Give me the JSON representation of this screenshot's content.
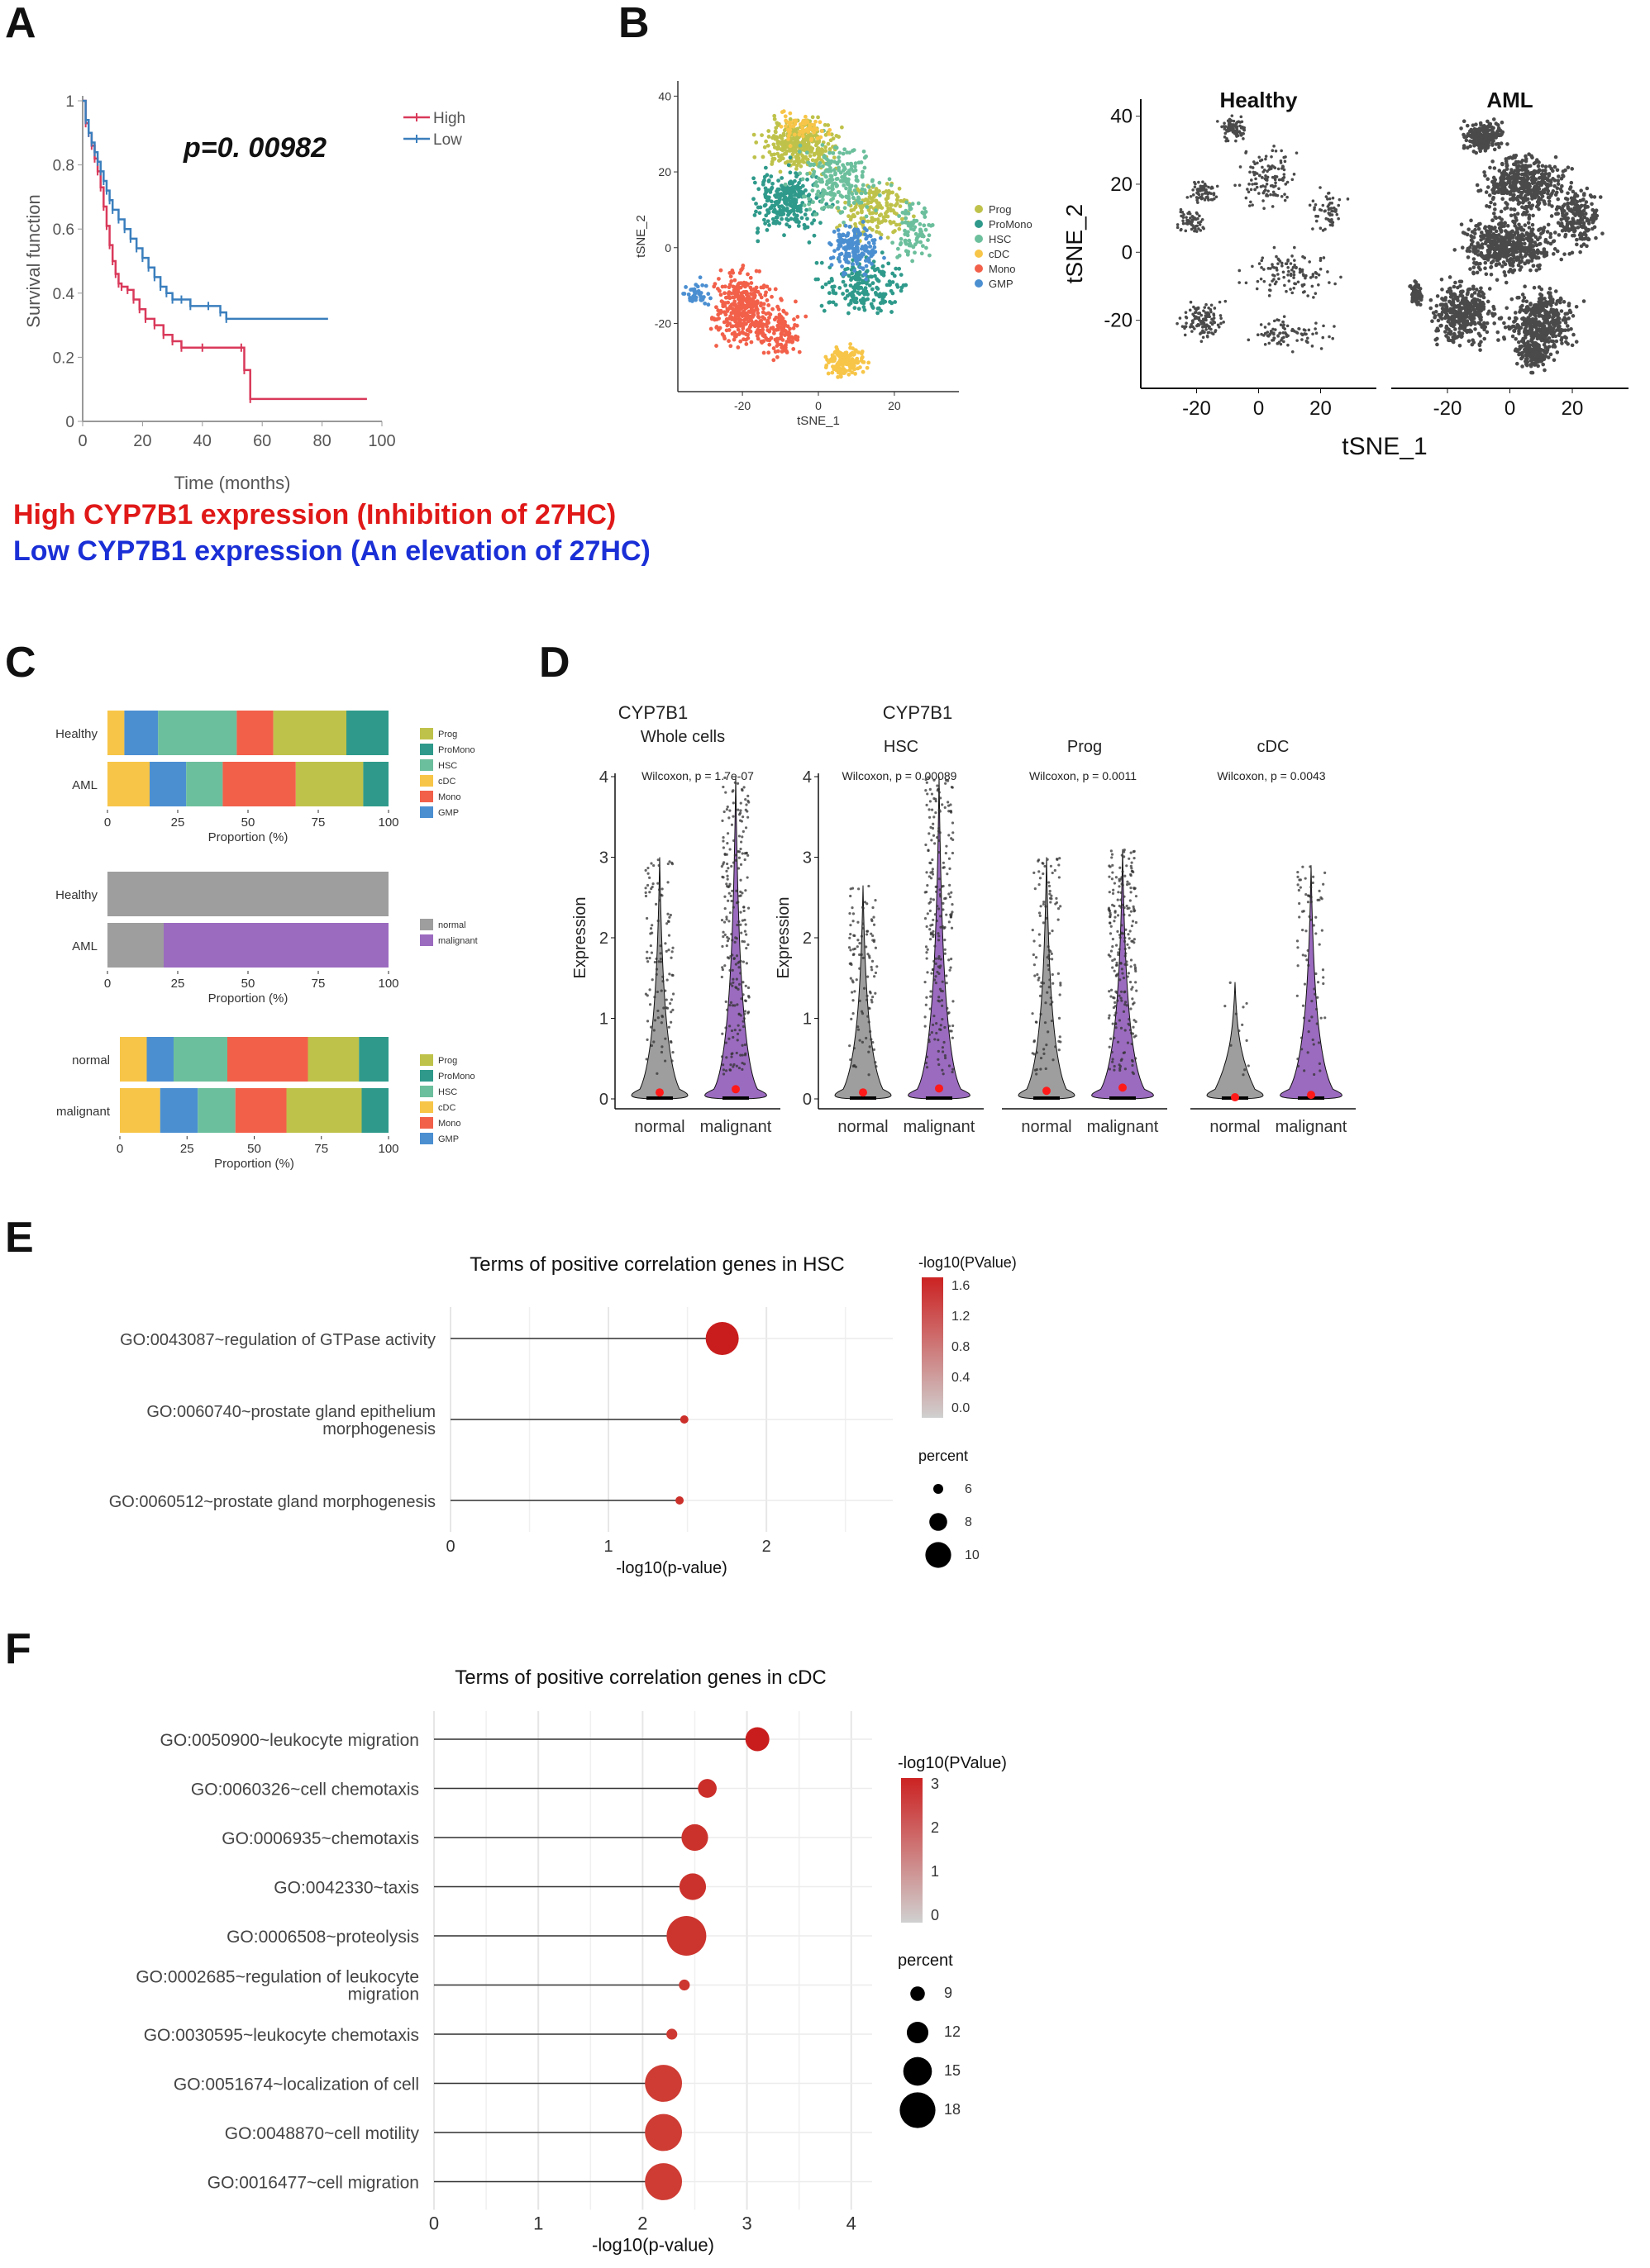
{
  "panels": {
    "A": "A",
    "B": "B",
    "C": "C",
    "D": "D",
    "E": "E",
    "F": "F"
  },
  "colors": {
    "high": "#d9395a",
    "low": "#3a7ebd",
    "Prog": "#bfc24a",
    "ProMono": "#2f9a8b",
    "HSC": "#6cbf9c",
    "cDC": "#f7c548",
    "Mono": "#f2604a",
    "GMP": "#4b8fd1",
    "normal": "#9e9e9e",
    "malignant": "#9b6bbf",
    "tsne_dots": "#4a4a4a",
    "red_dot": "#ff1a1a",
    "pval_low": "#d0d0d0",
    "pval_high": "#cc2222"
  },
  "panelA": {
    "pvalue_text": "p=0. 00982",
    "xlabel": "Time (months)",
    "ylabel": "Survival function",
    "legend": [
      "High",
      "Low"
    ],
    "caption_high": "High CYP7B1 expression (Inhibition of 27HC)",
    "caption_low": "Low CYP7B1 expression (An elevation of 27HC)",
    "chart_data": {
      "type": "line",
      "xlabel": "Time (months)",
      "ylabel": "Survival function",
      "xlim": [
        0,
        100
      ],
      "ylim": [
        0,
        1
      ],
      "x_ticks": [
        "0",
        "20",
        "40",
        "60",
        "80",
        "100"
      ],
      "y_ticks": [
        "0",
        "0.2",
        "0.4",
        "0.6",
        "0.8",
        "1"
      ],
      "series": [
        {
          "name": "High",
          "x": [
            0,
            1,
            2,
            3,
            4,
            5,
            6,
            7,
            8,
            9,
            10,
            11,
            12,
            13,
            15,
            17,
            19,
            21,
            24,
            27,
            30,
            33,
            40,
            53,
            54,
            56,
            95
          ],
          "y": [
            1,
            0.93,
            0.9,
            0.86,
            0.82,
            0.78,
            0.73,
            0.67,
            0.61,
            0.55,
            0.5,
            0.46,
            0.43,
            0.42,
            0.41,
            0.38,
            0.35,
            0.32,
            0.3,
            0.27,
            0.25,
            0.23,
            0.23,
            0.23,
            0.16,
            0.07,
            0.07
          ]
        },
        {
          "name": "Low",
          "x": [
            0,
            1,
            2,
            3,
            4,
            5,
            6,
            7,
            8,
            9,
            10,
            12,
            14,
            16,
            18,
            20,
            22,
            24,
            26,
            28,
            30,
            33,
            36,
            42,
            46,
            48,
            82
          ],
          "y": [
            1,
            0.94,
            0.9,
            0.87,
            0.84,
            0.81,
            0.78,
            0.75,
            0.72,
            0.69,
            0.66,
            0.63,
            0.6,
            0.57,
            0.54,
            0.51,
            0.48,
            0.45,
            0.42,
            0.4,
            0.38,
            0.38,
            0.36,
            0.36,
            0.34,
            0.32,
            0.32
          ]
        }
      ]
    }
  },
  "panelB": {
    "left_xlabel": "tSNE_1",
    "left_ylabel": "tSNE_2",
    "left_ticks_x": [
      "-20",
      "0",
      "20"
    ],
    "left_ticks_y": [
      "-20",
      "0",
      "20",
      "40"
    ],
    "legend": [
      "Prog",
      "ProMono",
      "HSC",
      "cDC",
      "Mono",
      "GMP"
    ],
    "right_titles": [
      "Healthy",
      "AML"
    ],
    "right_xlabel": "tSNE_1",
    "right_ylabel": "tSNE_2",
    "right_ticks_x": [
      "-20",
      "0",
      "20"
    ],
    "right_ticks_y": [
      "-20",
      "0",
      "20",
      "40"
    ]
  },
  "panelC": {
    "chart_data": [
      {
        "type": "bar",
        "stacked": true,
        "orientation": "horizontal",
        "xlabel": "Proportion (%)",
        "categories": [
          "Healthy",
          "AML"
        ],
        "series": [
          {
            "name": "Prog",
            "values": [
              0,
              0
            ]
          },
          {
            "name": "cDC",
            "values": [
              6,
              15
            ]
          },
          {
            "name": "GMP",
            "values": [
              12,
              13
            ]
          },
          {
            "name": "HSC",
            "values": [
              28,
              13
            ]
          },
          {
            "name": "Mono",
            "values": [
              13,
              26
            ]
          },
          {
            "name": "Prog",
            "values": [
              26,
              24
            ]
          },
          {
            "name": "ProMono",
            "values": [
              15,
              9
            ]
          }
        ],
        "legend": [
          "Prog",
          "ProMono",
          "HSC",
          "cDC",
          "Mono",
          "GMP"
        ],
        "x_ticks": [
          "0",
          "25",
          "50",
          "75",
          "100"
        ]
      },
      {
        "type": "bar",
        "stacked": true,
        "orientation": "horizontal",
        "xlabel": "Proportion (%)",
        "categories": [
          "Healthy",
          "AML"
        ],
        "series": [
          {
            "name": "normal",
            "values": [
              100,
              20
            ]
          },
          {
            "name": "malignant",
            "values": [
              0,
              80
            ]
          }
        ],
        "legend": [
          "normal",
          "malignant"
        ],
        "x_ticks": [
          "0",
          "25",
          "50",
          "75",
          "100"
        ]
      },
      {
        "type": "bar",
        "stacked": true,
        "orientation": "horizontal",
        "xlabel": "Proportion (%)",
        "categories": [
          "normal",
          "malignant"
        ],
        "series": [
          {
            "name": "cDC",
            "values": [
              10,
              15
            ]
          },
          {
            "name": "GMP",
            "values": [
              10,
              14
            ]
          },
          {
            "name": "HSC",
            "values": [
              20,
              14
            ]
          },
          {
            "name": "Mono",
            "values": [
              30,
              19
            ]
          },
          {
            "name": "Prog",
            "values": [
              19,
              28
            ]
          },
          {
            "name": "ProMono",
            "values": [
              11,
              10
            ]
          }
        ],
        "legend": [
          "Prog",
          "ProMono",
          "HSC",
          "cDC",
          "Mono",
          "GMP"
        ],
        "x_ticks": [
          "0",
          "25",
          "50",
          "75",
          "100"
        ]
      }
    ]
  },
  "panelD": {
    "title_left": "CYP7B1",
    "subtitle_left": "Whole cells",
    "title_right": "CYP7B1",
    "ylabel": "Expression",
    "y_ticks": [
      "0",
      "1",
      "2",
      "3",
      "4"
    ],
    "chart_data": [
      {
        "type": "violin",
        "title": "Whole cells",
        "stat": "Wilcoxon, p = 1.7e-07",
        "groups": [
          "normal",
          "malignant"
        ],
        "means": [
          0.08,
          0.12
        ],
        "max": [
          3.0,
          4.0
        ]
      },
      {
        "type": "violin",
        "title": "HSC",
        "stat": "Wilcoxon, p = 0.00089",
        "groups": [
          "normal",
          "malignant"
        ],
        "means": [
          0.08,
          0.13
        ],
        "max": [
          2.65,
          4.0
        ]
      },
      {
        "type": "violin",
        "title": "Prog",
        "stat": "Wilcoxon, p = 0.0011",
        "groups": [
          "normal",
          "malignant"
        ],
        "means": [
          0.1,
          0.14
        ],
        "max": [
          3.0,
          3.1
        ]
      },
      {
        "type": "violin",
        "title": "cDC",
        "stat": "Wilcoxon, p = 0.0043",
        "groups": [
          "normal",
          "malignant"
        ],
        "means": [
          0.02,
          0.05
        ],
        "max": [
          1.45,
          2.9
        ]
      }
    ]
  },
  "panelE": {
    "chart_data": {
      "type": "scatter",
      "title": "Terms of positive correlation genes in HSC",
      "xlabel": "-log10(p-value)",
      "xlim": [
        0,
        2.8
      ],
      "x_ticks": [
        "0",
        "1",
        "2"
      ],
      "categories": [
        "GO:0043087~regulation of GTPase activity",
        "GO:0060740~prostate gland epithelium\nmorphogenesis",
        "GO:0060512~prostate gland morphogenesis"
      ],
      "label_lines": [
        [
          "GO:0043087~regulation of GTPase activity"
        ],
        [
          "GO:0060740~prostate gland epithelium",
          "morphogenesis"
        ],
        [
          "GO:0060512~prostate gland morphogenesis"
        ]
      ],
      "values": [
        1.72,
        1.48,
        1.45
      ],
      "percent": [
        11,
        5,
        5
      ],
      "color_title": "-log10(PValue)",
      "color_ticks": [
        "1.6",
        "1.2",
        "0.8",
        "0.4",
        "0.0"
      ],
      "size_title": "percent",
      "size_ticks": [
        "6",
        "8",
        "10"
      ]
    }
  },
  "panelF": {
    "chart_data": {
      "type": "scatter",
      "title": "Terms of positive correlation genes in cDC",
      "xlabel": "-log10(p-value)",
      "xlim": [
        0,
        4.2
      ],
      "x_ticks": [
        "0",
        "1",
        "2",
        "3",
        "4"
      ],
      "categories": [
        "GO:0050900~leukocyte migration",
        "GO:0060326~cell chemotaxis",
        "GO:0006935~chemotaxis",
        "GO:0042330~taxis",
        "GO:0006508~proteolysis",
        "GO:0002685~regulation of leukocyte migration",
        "GO:0030595~leukocyte chemotaxis",
        "GO:0051674~localization of cell",
        "GO:0048870~cell motility",
        "GO:0016477~cell migration"
      ],
      "label_lines": [
        [
          "GO:0050900~leukocyte migration"
        ],
        [
          "GO:0060326~cell chemotaxis"
        ],
        [
          "GO:0006935~chemotaxis"
        ],
        [
          "GO:0042330~taxis"
        ],
        [
          "GO:0006508~proteolysis"
        ],
        [
          "GO:0002685~regulation of leukocyte",
          "migration"
        ],
        [
          "GO:0030595~leukocyte chemotaxis"
        ],
        [
          "GO:0051674~localization of cell"
        ],
        [
          "GO:0048870~cell motility"
        ],
        [
          "GO:0016477~cell migration"
        ]
      ],
      "values": [
        3.1,
        2.62,
        2.5,
        2.48,
        2.42,
        2.4,
        2.28,
        2.2,
        2.2,
        2.2
      ],
      "percent": [
        12,
        10,
        13,
        13,
        18,
        7,
        7,
        17,
        17,
        17
      ],
      "color_title": "-log10(PValue)",
      "color_ticks": [
        "3",
        "2",
        "1",
        "0"
      ],
      "size_title": "percent",
      "size_ticks": [
        "9",
        "12",
        "15",
        "18"
      ]
    }
  }
}
